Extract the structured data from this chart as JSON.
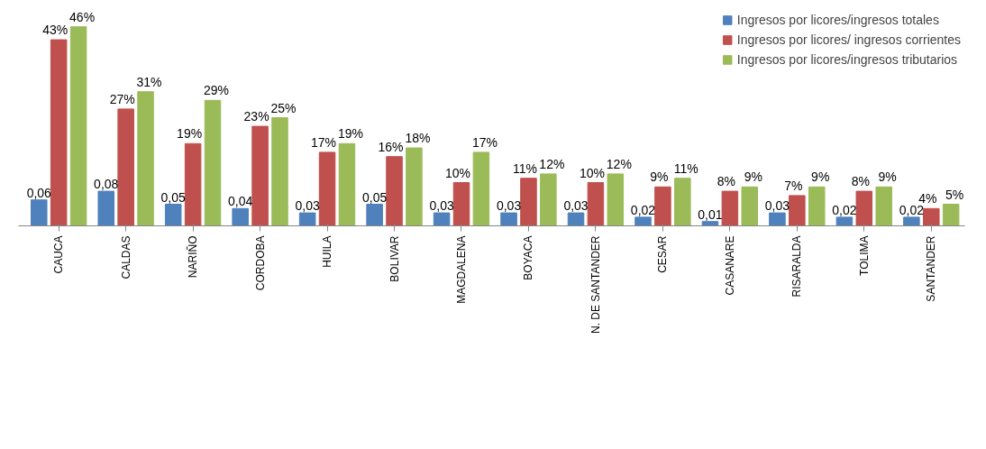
{
  "chart_data": {
    "type": "bar",
    "categories": [
      "CAUCA",
      "CALDAS",
      "NARIÑO",
      "CORDOBA",
      "HUILA",
      "BOLIVAR",
      "MAGDALENA",
      "BOYACA",
      "N. DE SANTANDER",
      "CESAR",
      "CASANARE",
      "RISARALDA",
      "TOLIMA",
      "SANTANDER"
    ],
    "series": [
      {
        "name": "Ingresos por licores/ingresos totales",
        "color": "#4f81bd",
        "axis": "y2",
        "values": [
          0.06,
          0.08,
          0.05,
          0.04,
          0.03,
          0.05,
          0.03,
          0.03,
          0.03,
          0.02,
          0.01,
          0.03,
          0.02,
          0.02
        ],
        "value_labels": [
          "0,06",
          "0,08",
          "0,05",
          "0,04",
          "0,03",
          "0,05",
          "0,03",
          "0,03",
          "0,03",
          "0,02",
          "0,01",
          "0,03",
          "0,02",
          "0,02"
        ]
      },
      {
        "name": "Ingresos por licores/ ingresos corrientes",
        "color": "#c0504d",
        "values": [
          43,
          27,
          19,
          23,
          17,
          16,
          10,
          11,
          10,
          9,
          8,
          7,
          8,
          4
        ],
        "value_labels": [
          "43%",
          "27%",
          "19%",
          "23%",
          "17%",
          "16%",
          "10%",
          "11%",
          "10%",
          "9%",
          "8%",
          "7%",
          "8%",
          "4%"
        ]
      },
      {
        "name": "Ingresos por licores/ingresos tributarios",
        "color": "#9bbb59",
        "values": [
          46,
          31,
          29,
          25,
          19,
          18,
          17,
          12,
          12,
          11,
          9,
          9,
          9,
          5
        ],
        "value_labels": [
          "46%",
          "31%",
          "29%",
          "25%",
          "19%",
          "18%",
          "17%",
          "12%",
          "12%",
          "11%",
          "9%",
          "9%",
          "9%",
          "5%"
        ]
      }
    ],
    "ylim": [
      0,
      50
    ],
    "y2lim": [
      0,
      0.5
    ],
    "tick_labels": "x",
    "grid": false,
    "legend": "top right"
  }
}
